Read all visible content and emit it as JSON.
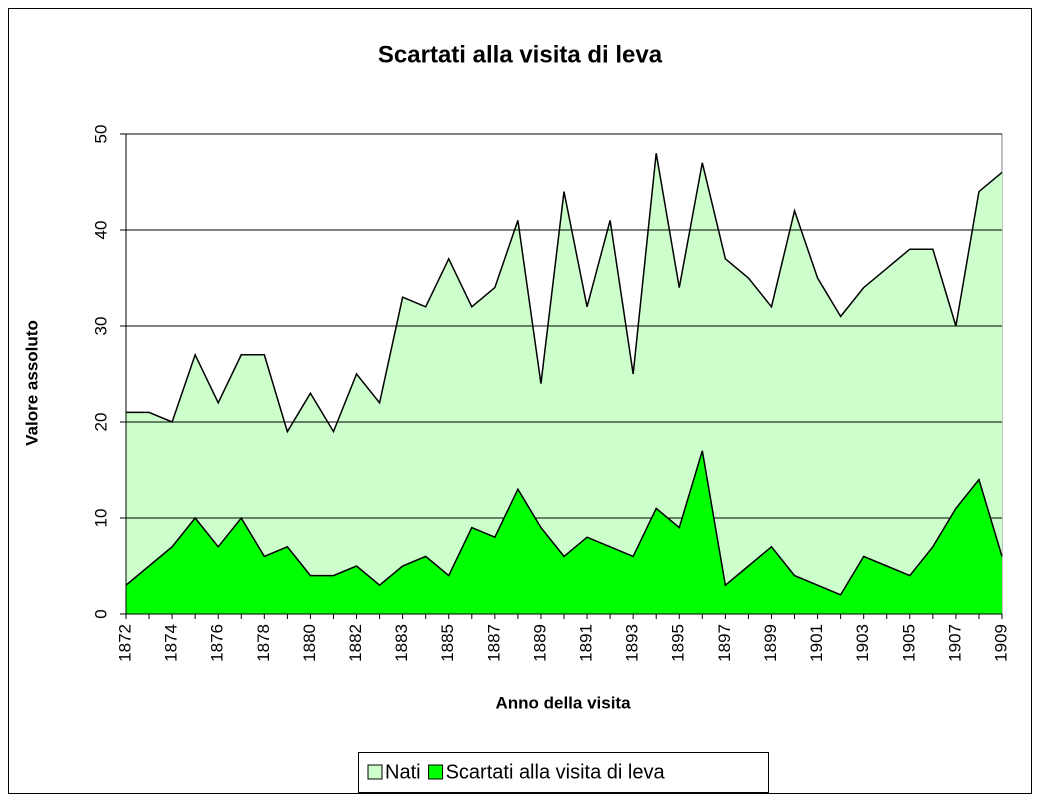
{
  "chart_data": {
    "type": "area",
    "title": "Scartati alla visita di leva",
    "x_label": "Anno della visita",
    "y_label": "Valore assoluto",
    "categories": [
      "1872",
      null,
      "1874",
      null,
      "1876",
      null,
      "1878",
      null,
      "1880",
      null,
      "1882",
      null,
      "1883",
      null,
      "1885",
      null,
      "1887",
      null,
      "1889",
      null,
      "1891",
      null,
      "1893",
      null,
      "1895",
      null,
      "1897",
      null,
      "1899",
      null,
      "1901",
      null,
      "1903",
      null,
      "1905",
      null,
      "1907",
      null,
      "1909"
    ],
    "series": [
      {
        "name": "Nati",
        "color": "#ccffcc",
        "values": [
          21,
          21,
          20,
          27,
          22,
          27,
          27,
          19,
          23,
          19,
          25,
          22,
          33,
          32,
          37,
          32,
          34,
          41,
          24,
          44,
          32,
          41,
          25,
          48,
          34,
          47,
          37,
          35,
          32,
          42,
          35,
          31,
          34,
          36,
          38,
          38,
          30,
          44,
          46
        ]
      },
      {
        "name": "Scartati alla visita di leva",
        "color": "#00ff00",
        "values": [
          3,
          5,
          7,
          10,
          7,
          10,
          6,
          7,
          4,
          4,
          5,
          3,
          5,
          6,
          4,
          9,
          8,
          13,
          9,
          6,
          8,
          7,
          6,
          11,
          9,
          17,
          3,
          5,
          7,
          4,
          3,
          2,
          6,
          5,
          4,
          7,
          11,
          14,
          6
        ]
      }
    ],
    "ylim": [
      0,
      50
    ],
    "yticks": [
      0,
      10,
      20,
      30,
      40,
      50
    ],
    "grid": true,
    "legend": "bottom"
  }
}
